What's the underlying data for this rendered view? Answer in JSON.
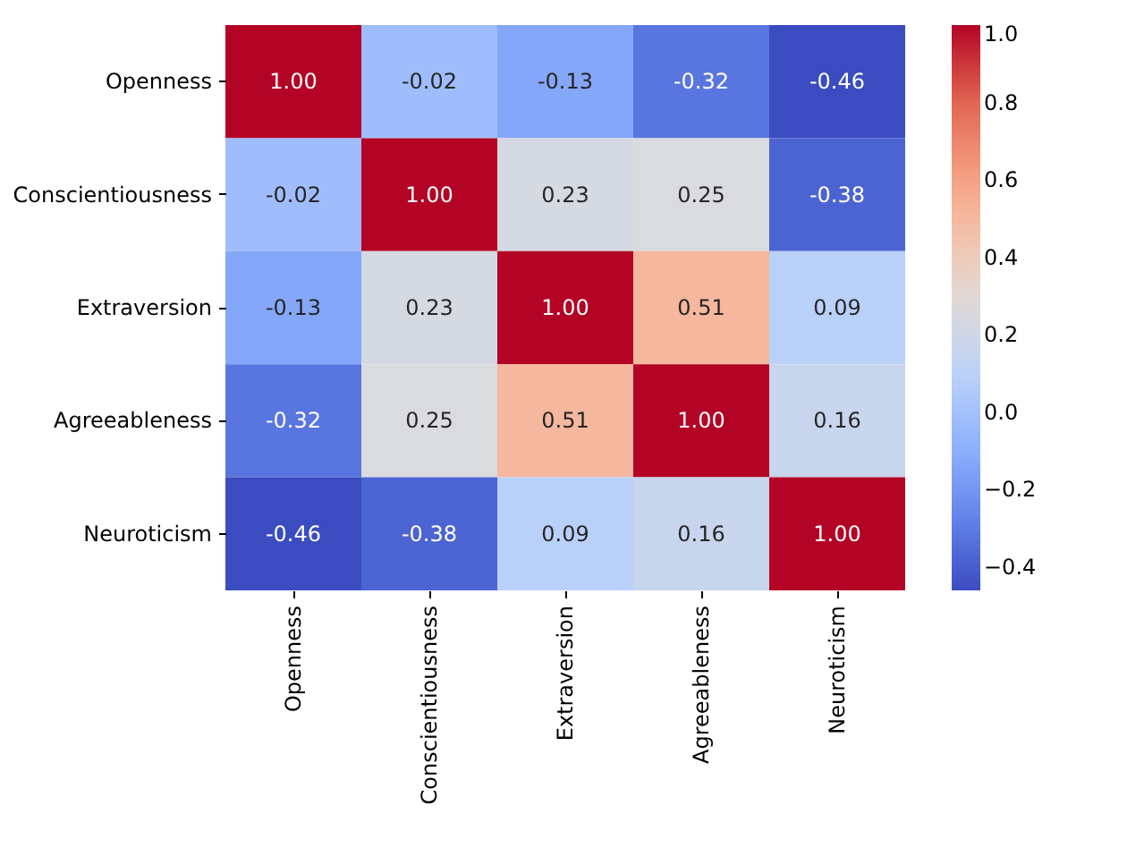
{
  "chart_data": {
    "type": "heatmap",
    "categories": [
      "Openness",
      "Conscientiousness",
      "Extraversion",
      "Agreeableness",
      "Neuroticism"
    ],
    "y_categories": [
      "Openness",
      "Conscientiousness",
      "Extraversion",
      "Agreeableness",
      "Neuroticism"
    ],
    "cells": [
      [
        1.0,
        -0.02,
        -0.13,
        -0.32,
        -0.46
      ],
      [
        -0.02,
        1.0,
        0.23,
        0.25,
        -0.38
      ],
      [
        -0.13,
        0.23,
        1.0,
        0.51,
        0.09
      ],
      [
        -0.32,
        0.25,
        0.51,
        1.0,
        0.16
      ],
      [
        -0.46,
        -0.38,
        0.09,
        0.16,
        1.0
      ]
    ],
    "cell_labels": [
      [
        "1.00",
        "-0.02",
        "-0.13",
        "-0.32",
        "-0.46"
      ],
      [
        "-0.02",
        "1.00",
        "0.23",
        "0.25",
        "-0.38"
      ],
      [
        "-0.13",
        "0.23",
        "1.00",
        "0.51",
        "0.09"
      ],
      [
        "-0.32",
        "0.25",
        "0.51",
        "1.00",
        "0.16"
      ],
      [
        "-0.46",
        "-0.38",
        "0.09",
        "0.16",
        "1.00"
      ]
    ],
    "clim": [
      -0.46,
      1.0
    ],
    "cticks": [
      {
        "value": -0.4,
        "label": "−0.4"
      },
      {
        "value": -0.2,
        "label": "−0.2"
      },
      {
        "value": 0,
        "label": "0.0"
      },
      {
        "value": 0.2,
        "label": "0.2"
      },
      {
        "value": 0.4,
        "label": "0.4"
      },
      {
        "value": 0.6,
        "label": "0.6"
      },
      {
        "value": 0.8,
        "label": "0.8"
      },
      {
        "value": 1.0,
        "label": "1.0"
      }
    ]
  }
}
